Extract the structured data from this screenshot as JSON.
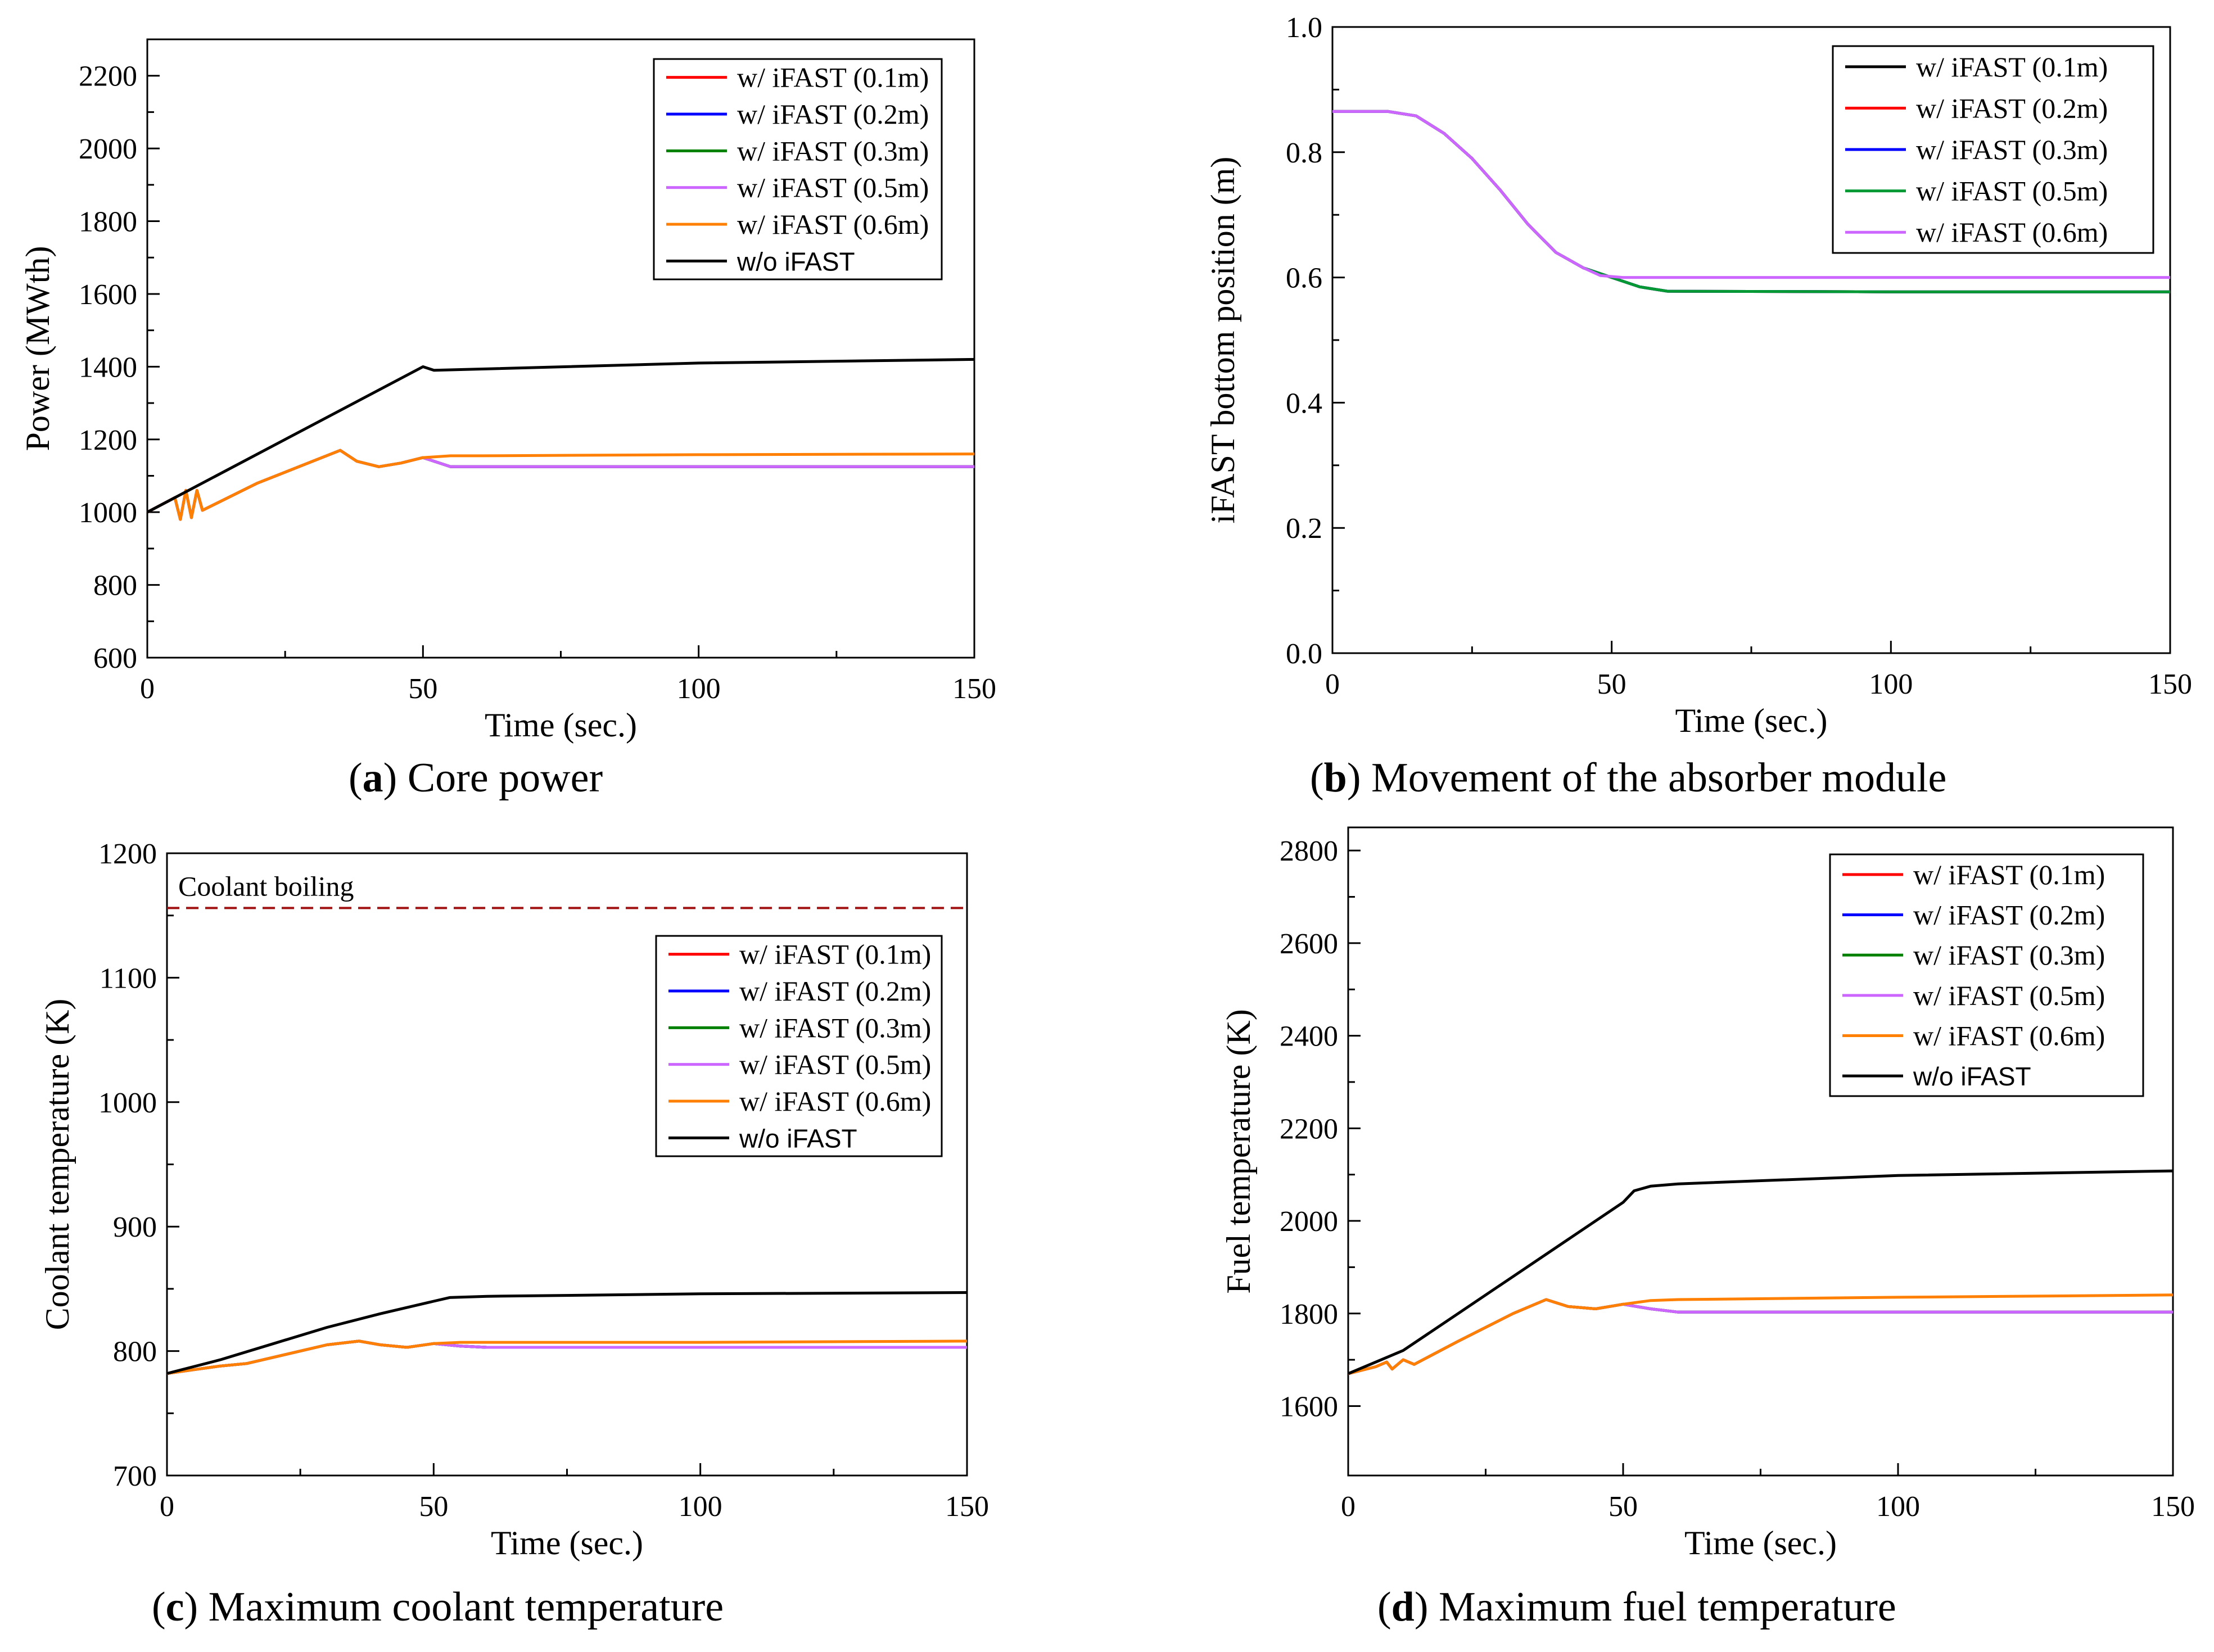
{
  "chart_data": [
    {
      "id": "a",
      "type": "line",
      "caption": {
        "letter": "a",
        "text": "Core power"
      },
      "xlabel": "Time (sec.)",
      "ylabel": "Power (MWth)",
      "xlim": [
        0,
        150
      ],
      "ylim": [
        600,
        2300
      ],
      "xticks": [
        0,
        50,
        100,
        150
      ],
      "yticks": [
        600,
        800,
        1000,
        1200,
        1400,
        1600,
        1800,
        2000,
        2200
      ],
      "legend": "top-right",
      "series": [
        {
          "name": "w/ iFAST (0.1m)",
          "color": "#ff0000",
          "x": [
            0,
            5,
            6,
            7,
            8,
            9,
            10,
            20,
            30,
            35,
            38,
            42,
            46,
            50,
            55,
            60,
            100,
            150
          ],
          "y": [
            1000,
            1040,
            980,
            1060,
            985,
            1060,
            1005,
            1080,
            1140,
            1170,
            1140,
            1125,
            1135,
            1150,
            1125,
            1125,
            1125,
            1125
          ]
        },
        {
          "name": "w/ iFAST (0.2m)",
          "color": "#0000ff",
          "x": [
            0,
            5,
            6,
            7,
            8,
            9,
            10,
            20,
            30,
            35,
            38,
            42,
            46,
            50,
            55,
            60,
            100,
            150
          ],
          "y": [
            1000,
            1040,
            980,
            1060,
            985,
            1060,
            1005,
            1080,
            1140,
            1170,
            1140,
            1125,
            1135,
            1150,
            1125,
            1125,
            1125,
            1125
          ]
        },
        {
          "name": "w/ iFAST (0.3m)",
          "color": "#008000",
          "x": [
            0,
            5,
            6,
            7,
            8,
            9,
            10,
            20,
            30,
            35,
            38,
            42,
            46,
            50,
            55,
            60,
            100,
            150
          ],
          "y": [
            1000,
            1040,
            980,
            1060,
            985,
            1060,
            1005,
            1080,
            1140,
            1170,
            1140,
            1125,
            1135,
            1150,
            1125,
            1125,
            1125,
            1125
          ]
        },
        {
          "name": "w/ iFAST (0.5m)",
          "color": "#cc66ff",
          "x": [
            0,
            5,
            6,
            7,
            8,
            9,
            10,
            20,
            30,
            35,
            38,
            42,
            46,
            50,
            55,
            60,
            100,
            150
          ],
          "y": [
            1000,
            1040,
            980,
            1060,
            985,
            1060,
            1005,
            1080,
            1140,
            1170,
            1140,
            1125,
            1135,
            1150,
            1125,
            1125,
            1125,
            1125
          ]
        },
        {
          "name": "w/ iFAST (0.6m)",
          "color": "#ff8000",
          "x": [
            0,
            5,
            6,
            7,
            8,
            9,
            10,
            20,
            30,
            35,
            38,
            42,
            46,
            50,
            55,
            60,
            100,
            150
          ],
          "y": [
            1000,
            1040,
            980,
            1060,
            985,
            1060,
            1005,
            1080,
            1140,
            1170,
            1140,
            1125,
            1135,
            1150,
            1155,
            1155,
            1158,
            1160
          ]
        },
        {
          "name": "w/o iFAST",
          "color": "#000000",
          "x": [
            0,
            50,
            52,
            100,
            150
          ],
          "y": [
            1000,
            1400,
            1390,
            1410,
            1420
          ]
        }
      ]
    },
    {
      "id": "b",
      "type": "line",
      "caption": {
        "letter": "b",
        "text": "Movement of the absorber module"
      },
      "xlabel": "Time (sec.)",
      "ylabel": "iFAST bottom position (m)",
      "xlim": [
        0,
        150
      ],
      "ylim": [
        0,
        1.0
      ],
      "xticks": [
        0,
        50,
        100,
        150
      ],
      "yticks": [
        0.0,
        0.2,
        0.4,
        0.6,
        0.8,
        1.0
      ],
      "ytick_labels": [
        "0.0",
        "0.2",
        "0.4",
        "0.6",
        "0.8",
        "1.0"
      ],
      "legend": "top-right",
      "series": [
        {
          "name": "w/ iFAST (0.1m)",
          "color": "#000000",
          "x": [
            0,
            10,
            15,
            20,
            25,
            30,
            35,
            40,
            45,
            50,
            55,
            60,
            100,
            150
          ],
          "y": [
            0.865,
            0.865,
            0.858,
            0.83,
            0.79,
            0.74,
            0.685,
            0.64,
            0.615,
            0.6,
            0.585,
            0.578,
            0.577,
            0.577
          ]
        },
        {
          "name": "w/ iFAST (0.2m)",
          "color": "#ff0000",
          "x": [
            0,
            10,
            15,
            20,
            25,
            30,
            35,
            40,
            45,
            50,
            55,
            60,
            100,
            150
          ],
          "y": [
            0.865,
            0.865,
            0.858,
            0.83,
            0.79,
            0.74,
            0.685,
            0.64,
            0.615,
            0.6,
            0.585,
            0.578,
            0.577,
            0.577
          ]
        },
        {
          "name": "w/ iFAST (0.3m)",
          "color": "#0000ff",
          "x": [
            0,
            10,
            15,
            20,
            25,
            30,
            35,
            40,
            45,
            50,
            55,
            60,
            100,
            150
          ],
          "y": [
            0.865,
            0.865,
            0.858,
            0.83,
            0.79,
            0.74,
            0.685,
            0.64,
            0.615,
            0.6,
            0.585,
            0.578,
            0.577,
            0.577
          ]
        },
        {
          "name": "w/ iFAST (0.5m)",
          "color": "#009933",
          "x": [
            0,
            10,
            15,
            20,
            25,
            30,
            35,
            40,
            45,
            50,
            55,
            60,
            100,
            150
          ],
          "y": [
            0.865,
            0.865,
            0.858,
            0.83,
            0.79,
            0.74,
            0.685,
            0.64,
            0.615,
            0.6,
            0.585,
            0.578,
            0.577,
            0.577
          ]
        },
        {
          "name": "w/ iFAST (0.6m)",
          "color": "#cc66ff",
          "x": [
            0,
            10,
            15,
            20,
            25,
            30,
            35,
            40,
            45,
            48,
            52,
            100,
            150
          ],
          "y": [
            0.865,
            0.865,
            0.858,
            0.83,
            0.79,
            0.74,
            0.685,
            0.64,
            0.615,
            0.603,
            0.6,
            0.6,
            0.6
          ]
        }
      ]
    },
    {
      "id": "c",
      "type": "line",
      "caption": {
        "letter": "c",
        "text": "Maximum coolant temperature"
      },
      "xlabel": "Time (sec.)",
      "ylabel": "Coolant temperature (K)",
      "xlim": [
        0,
        150
      ],
      "ylim": [
        700,
        1200
      ],
      "xticks": [
        0,
        50,
        100,
        150
      ],
      "yticks": [
        700,
        800,
        900,
        1000,
        1100,
        1200
      ],
      "legend": "top-right",
      "annotation": {
        "text": "Coolant boiling",
        "y": 1156,
        "color": "#a01010"
      },
      "series": [
        {
          "name": "w/ iFAST (0.1m)",
          "color": "#ff0000",
          "x": [
            0,
            5,
            10,
            15,
            25,
            30,
            36,
            40,
            45,
            50,
            55,
            60,
            100,
            150
          ],
          "y": [
            782,
            785,
            788,
            790,
            800,
            805,
            808,
            805,
            803,
            806,
            804,
            803,
            803,
            803
          ]
        },
        {
          "name": "w/ iFAST (0.2m)",
          "color": "#0000ff",
          "x": [
            0,
            5,
            10,
            15,
            25,
            30,
            36,
            40,
            45,
            50,
            55,
            60,
            100,
            150
          ],
          "y": [
            782,
            785,
            788,
            790,
            800,
            805,
            808,
            805,
            803,
            806,
            804,
            803,
            803,
            803
          ]
        },
        {
          "name": "w/ iFAST (0.3m)",
          "color": "#008000",
          "x": [
            0,
            5,
            10,
            15,
            25,
            30,
            36,
            40,
            45,
            50,
            55,
            60,
            100,
            150
          ],
          "y": [
            782,
            785,
            788,
            790,
            800,
            805,
            808,
            805,
            803,
            806,
            804,
            803,
            803,
            803
          ]
        },
        {
          "name": "w/ iFAST (0.5m)",
          "color": "#cc66ff",
          "x": [
            0,
            5,
            10,
            15,
            25,
            30,
            36,
            40,
            45,
            50,
            55,
            60,
            100,
            150
          ],
          "y": [
            782,
            785,
            788,
            790,
            800,
            805,
            808,
            805,
            803,
            806,
            804,
            803,
            803,
            803
          ]
        },
        {
          "name": "w/ iFAST (0.6m)",
          "color": "#ff8000",
          "x": [
            0,
            5,
            10,
            15,
            25,
            30,
            36,
            40,
            45,
            50,
            55,
            60,
            100,
            150
          ],
          "y": [
            782,
            785,
            788,
            790,
            800,
            805,
            808,
            805,
            803,
            806,
            807,
            807,
            807,
            808
          ]
        },
        {
          "name": "w/o iFAST",
          "color": "#000000",
          "x": [
            0,
            10,
            20,
            30,
            40,
            50,
            53,
            60,
            100,
            150
          ],
          "y": [
            782,
            793,
            806,
            819,
            830,
            840,
            843,
            844,
            846,
            847
          ]
        }
      ]
    },
    {
      "id": "d",
      "type": "line",
      "caption": {
        "letter": "d",
        "text": "Maximum fuel temperature"
      },
      "xlabel": "Time (sec.)",
      "ylabel": "Fuel temperature (K)",
      "xlim": [
        0,
        150
      ],
      "ylim": [
        1450,
        2850
      ],
      "xticks": [
        0,
        50,
        100,
        150
      ],
      "yticks": [
        1600,
        1800,
        2000,
        2200,
        2400,
        2600,
        2800
      ],
      "legend": "top-right",
      "series": [
        {
          "name": "w/ iFAST (0.1m)",
          "color": "#ff0000",
          "x": [
            0,
            5,
            7,
            8,
            10,
            12,
            20,
            30,
            36,
            40,
            45,
            50,
            55,
            60,
            100,
            150
          ],
          "y": [
            1670,
            1685,
            1695,
            1680,
            1700,
            1690,
            1740,
            1800,
            1830,
            1815,
            1810,
            1820,
            1810,
            1803,
            1803,
            1803
          ]
        },
        {
          "name": "w/ iFAST (0.2m)",
          "color": "#0000ff",
          "x": [
            0,
            5,
            7,
            8,
            10,
            12,
            20,
            30,
            36,
            40,
            45,
            50,
            55,
            60,
            100,
            150
          ],
          "y": [
            1670,
            1685,
            1695,
            1680,
            1700,
            1690,
            1740,
            1800,
            1830,
            1815,
            1810,
            1820,
            1810,
            1803,
            1803,
            1803
          ]
        },
        {
          "name": "w/ iFAST (0.3m)",
          "color": "#008000",
          "x": [
            0,
            5,
            7,
            8,
            10,
            12,
            20,
            30,
            36,
            40,
            45,
            50,
            55,
            60,
            100,
            150
          ],
          "y": [
            1670,
            1685,
            1695,
            1680,
            1700,
            1690,
            1740,
            1800,
            1830,
            1815,
            1810,
            1820,
            1810,
            1803,
            1803,
            1803
          ]
        },
        {
          "name": "w/ iFAST (0.5m)",
          "color": "#cc66ff",
          "x": [
            0,
            5,
            7,
            8,
            10,
            12,
            20,
            30,
            36,
            40,
            45,
            50,
            55,
            60,
            100,
            150
          ],
          "y": [
            1670,
            1685,
            1695,
            1680,
            1700,
            1690,
            1740,
            1800,
            1830,
            1815,
            1810,
            1820,
            1810,
            1803,
            1803,
            1803
          ]
        },
        {
          "name": "w/ iFAST (0.6m)",
          "color": "#ff8000",
          "x": [
            0,
            5,
            7,
            8,
            10,
            12,
            20,
            30,
            36,
            40,
            45,
            50,
            55,
            60,
            100,
            150
          ],
          "y": [
            1670,
            1685,
            1695,
            1680,
            1700,
            1690,
            1740,
            1800,
            1830,
            1815,
            1810,
            1820,
            1828,
            1830,
            1835,
            1840
          ]
        },
        {
          "name": "w/o iFAST",
          "color": "#000000",
          "x": [
            0,
            10,
            20,
            30,
            40,
            50,
            52,
            55,
            60,
            100,
            150
          ],
          "y": [
            1670,
            1720,
            1800,
            1880,
            1960,
            2040,
            2065,
            2075,
            2080,
            2098,
            2108
          ]
        }
      ]
    }
  ]
}
